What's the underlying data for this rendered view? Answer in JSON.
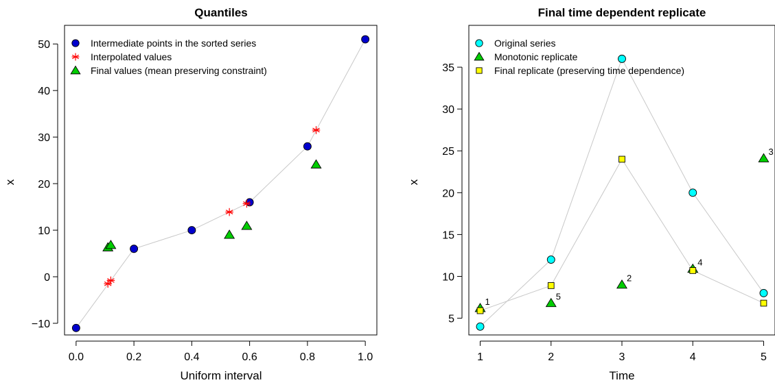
{
  "chart_data": [
    {
      "type": "scatter",
      "title": "Quantiles",
      "xlabel": "Uniform interval",
      "ylabel": "x",
      "xlim": [
        -0.04,
        1.04
      ],
      "ylim": [
        -12.5,
        54
      ],
      "xticks": [
        0.0,
        0.2,
        0.4,
        0.6,
        0.8,
        1.0
      ],
      "xtick_labels": [
        "0.0",
        "0.2",
        "0.4",
        "0.6",
        "0.8",
        "1.0"
      ],
      "yticks": [
        -10,
        0,
        10,
        20,
        30,
        40,
        50
      ],
      "ytick_labels": [
        "−10",
        "0",
        "10",
        "20",
        "30",
        "40",
        "50"
      ],
      "legend_position": "top-left",
      "series": [
        {
          "name": "Intermediate points in the sorted series",
          "marker": "circle",
          "color": "#0000CD",
          "line": true,
          "points": [
            [
              0.0,
              -11
            ],
            [
              0.2,
              6
            ],
            [
              0.4,
              10
            ],
            [
              0.6,
              16
            ],
            [
              0.8,
              28
            ],
            [
              1.0,
              51
            ]
          ]
        },
        {
          "name": "Interpolated values",
          "marker": "asterisk",
          "color": "#FF0000",
          "points": [
            [
              0.11,
              -1.5
            ],
            [
              0.12,
              -0.8
            ],
            [
              0.53,
              13.9
            ],
            [
              0.59,
              15.7
            ],
            [
              0.83,
              31.5
            ]
          ]
        },
        {
          "name": "Final values (mean preserving constraint)",
          "marker": "triangle",
          "color": "#00CD00",
          "points": [
            [
              0.11,
              6.3
            ],
            [
              0.12,
              6.8
            ],
            [
              0.53,
              9.0
            ],
            [
              0.59,
              10.9
            ],
            [
              0.83,
              24.1
            ]
          ]
        }
      ]
    },
    {
      "type": "scatter",
      "title": "Final time dependent replicate",
      "xlabel": "Time",
      "ylabel": "x",
      "xlim": [
        0.84,
        5.16
      ],
      "ylim": [
        3.0,
        40.0
      ],
      "xticks": [
        1,
        2,
        3,
        4,
        5
      ],
      "xtick_labels": [
        "1",
        "2",
        "3",
        "4",
        "5"
      ],
      "yticks": [
        5,
        10,
        15,
        20,
        25,
        30,
        35
      ],
      "ytick_labels": [
        "5",
        "10",
        "15",
        "20",
        "25",
        "30",
        "35"
      ],
      "legend_position": "top-left",
      "series": [
        {
          "name": "Original series",
          "marker": "circle",
          "color": "#00FFFF",
          "line": true,
          "points": [
            [
              1,
              4
            ],
            [
              2,
              12
            ],
            [
              3,
              36
            ],
            [
              4,
              20
            ],
            [
              5,
              8
            ]
          ]
        },
        {
          "name": "Monotonic replicate",
          "marker": "triangle",
          "color": "#00CD00",
          "points": [
            [
              1,
              6.2
            ],
            [
              2,
              6.8
            ],
            [
              3,
              9.0
            ],
            [
              4,
              10.9
            ],
            [
              5,
              24.1
            ]
          ],
          "labels": [
            "1",
            "5",
            "2",
            "4",
            "3"
          ]
        },
        {
          "name": "Final replicate (preserving time dependence)",
          "marker": "square",
          "color": "#FFFF00",
          "line": true,
          "points": [
            [
              1,
              5.9
            ],
            [
              2,
              8.9
            ],
            [
              3,
              24.0
            ],
            [
              4,
              10.7
            ],
            [
              5,
              6.8
            ]
          ]
        }
      ]
    }
  ]
}
